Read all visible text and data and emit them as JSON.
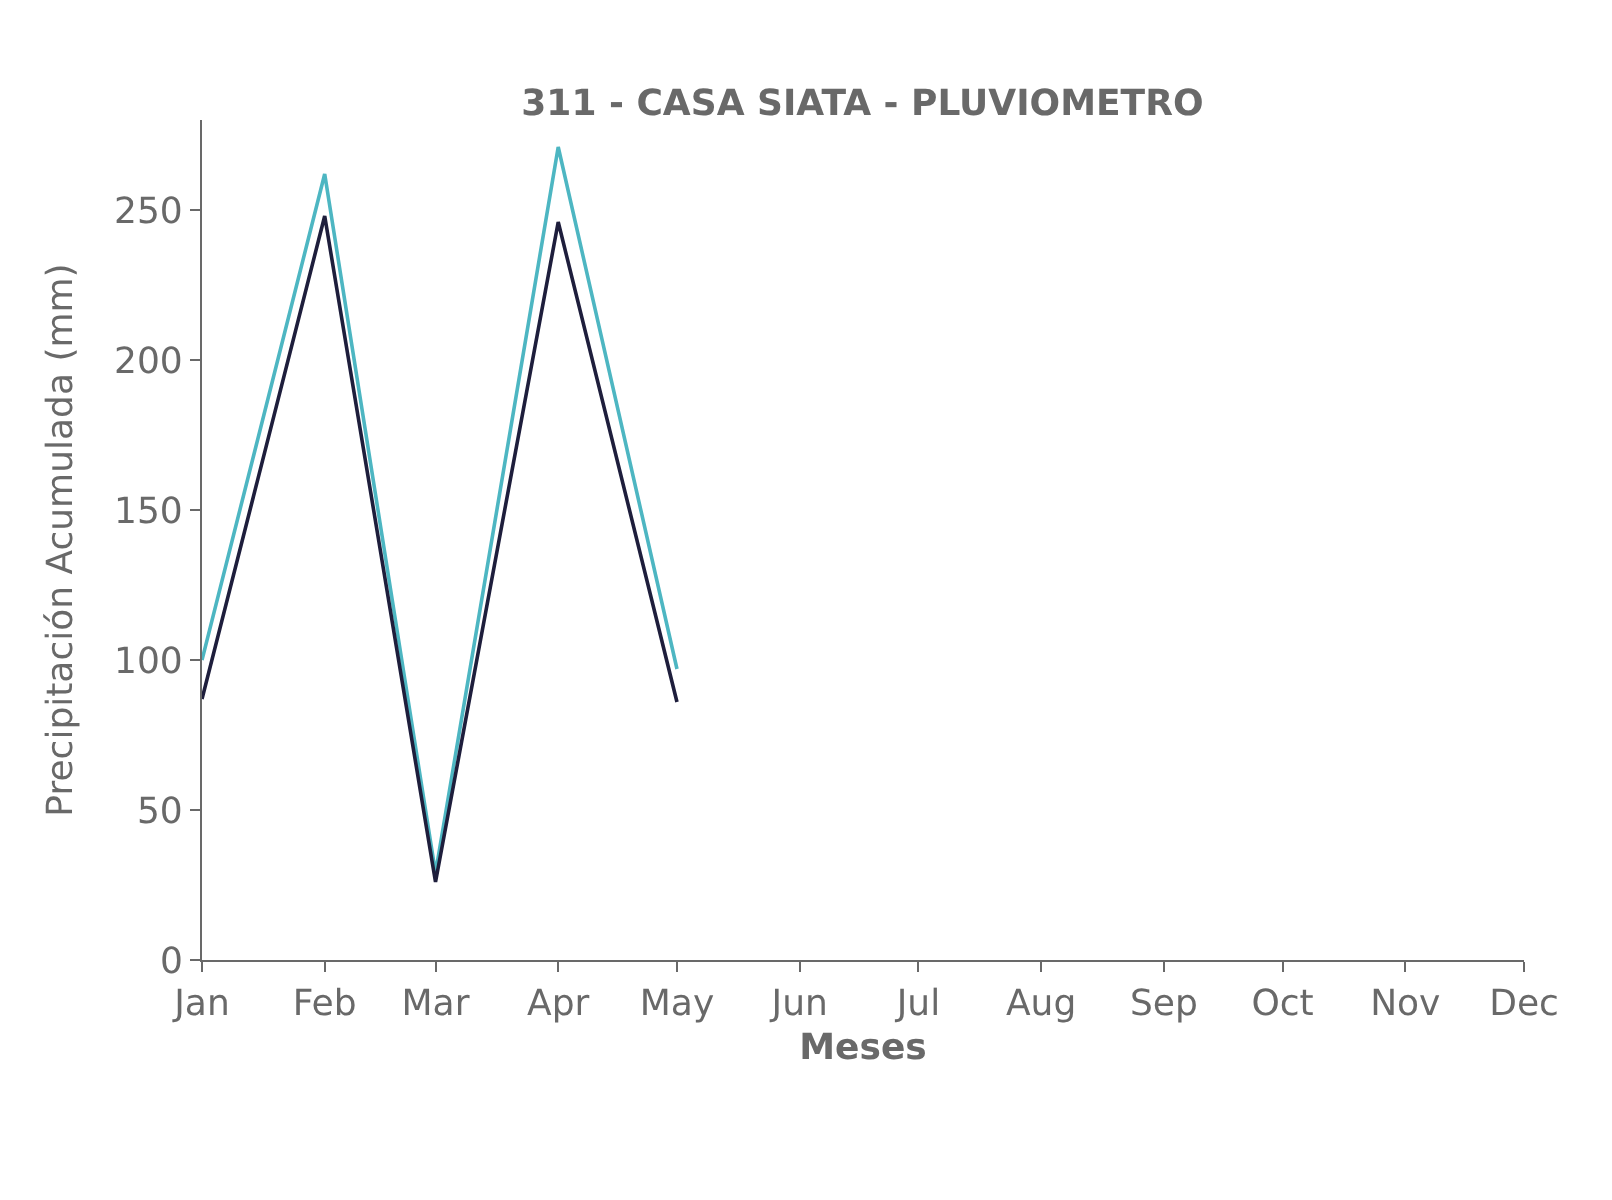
{
  "chart_data": {
    "type": "line",
    "title": "311 - CASA SIATA - PLUVIOMETRO",
    "xlabel": "Meses",
    "ylabel": "Precipitación Acumulada (mm)",
    "x": [
      "--01-01",
      "--02-01",
      "--03-01",
      "--04-01",
      "--05-01"
    ],
    "series": [
      {
        "color": "#4db6c2",
        "values": [
          100,
          262,
          29,
          271,
          97
        ]
      },
      {
        "color": "#1e1e3c",
        "values": [
          87,
          248,
          26,
          246,
          86
        ]
      }
    ],
    "xlim": [
      "--01-01",
      "--12-01"
    ],
    "xticks": [
      {
        "value": "--01-01",
        "label": "Jan"
      },
      {
        "value": "--02-01",
        "label": "Feb"
      },
      {
        "value": "--03-01",
        "label": "Mar"
      },
      {
        "value": "--04-01",
        "label": "Apr"
      },
      {
        "value": "--05-01",
        "label": "May"
      },
      {
        "value": "--06-01",
        "label": "Jun"
      },
      {
        "value": "--07-01",
        "label": "Jul"
      },
      {
        "value": "--08-01",
        "label": "Aug"
      },
      {
        "value": "--09-01",
        "label": "Sep"
      },
      {
        "value": "--10-01",
        "label": "Oct"
      },
      {
        "value": "--11-01",
        "label": "Nov"
      },
      {
        "value": "--12-01",
        "label": "Dec"
      }
    ],
    "ylim": [
      0,
      280
    ],
    "yticks": [
      0,
      50,
      100,
      150,
      200,
      250
    ],
    "marker": "none",
    "line_style": "solid"
  }
}
